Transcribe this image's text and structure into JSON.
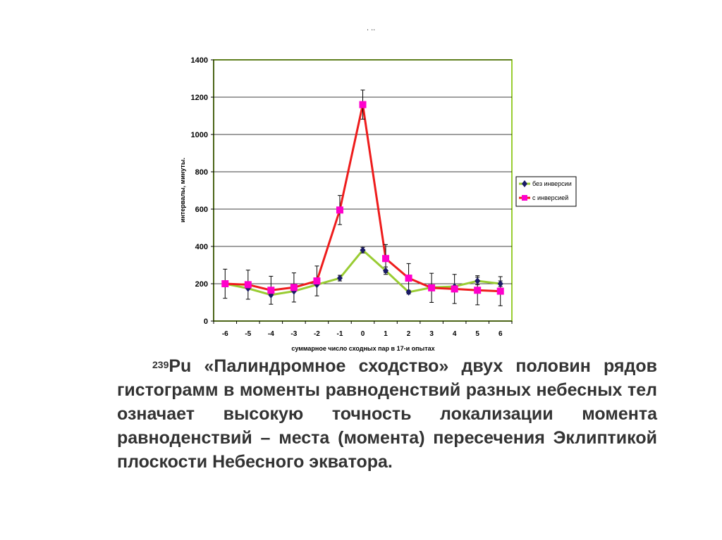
{
  "header_marks": ". ..",
  "chart_data": {
    "type": "line",
    "title": "",
    "xlabel": "суммарное число сходных пар в 17-и опытах",
    "ylabel": "интервалы, минуты.",
    "categories": [
      "-6",
      "-5",
      "-4",
      "-3",
      "-2",
      "-1",
      "0",
      "1",
      "2",
      "3",
      "4",
      "5",
      "6"
    ],
    "ylim": [
      0,
      1400
    ],
    "yticks": [
      0,
      200,
      400,
      600,
      800,
      1000,
      1200,
      1400
    ],
    "grid": "horizontal",
    "legend_position": "right",
    "series": [
      {
        "name": "без инверсии",
        "color": "#99cc33",
        "marker": "diamond",
        "marker_color": "#1a1a66",
        "values": [
          200,
          175,
          140,
          160,
          195,
          230,
          380,
          270,
          155,
          180,
          185,
          215,
          200
        ],
        "errors": [
          0,
          0,
          0,
          0,
          0,
          15,
          15,
          20,
          10,
          0,
          0,
          20,
          15
        ]
      },
      {
        "name": "с инверсией",
        "color": "#ee1c1c",
        "marker": "square",
        "marker_color": "#ff00cc",
        "values": [
          200,
          195,
          165,
          180,
          215,
          595,
          1160,
          335,
          230,
          178,
          172,
          165,
          160
        ],
        "errors": [
          78,
          78,
          75,
          78,
          80,
          78,
          78,
          75,
          78,
          78,
          78,
          78,
          78
        ]
      }
    ]
  },
  "caption": {
    "isotope_mass": "239",
    "isotope_symbol": "Pu",
    "text": " «Палиндромное сходство» двух половин рядов гистограмм в моменты равноденствий разных небесных тел означает высокую точность локализации момента равноденствий – места (момента) пересечения Эклиптикой плоскости Небесного экватора."
  }
}
